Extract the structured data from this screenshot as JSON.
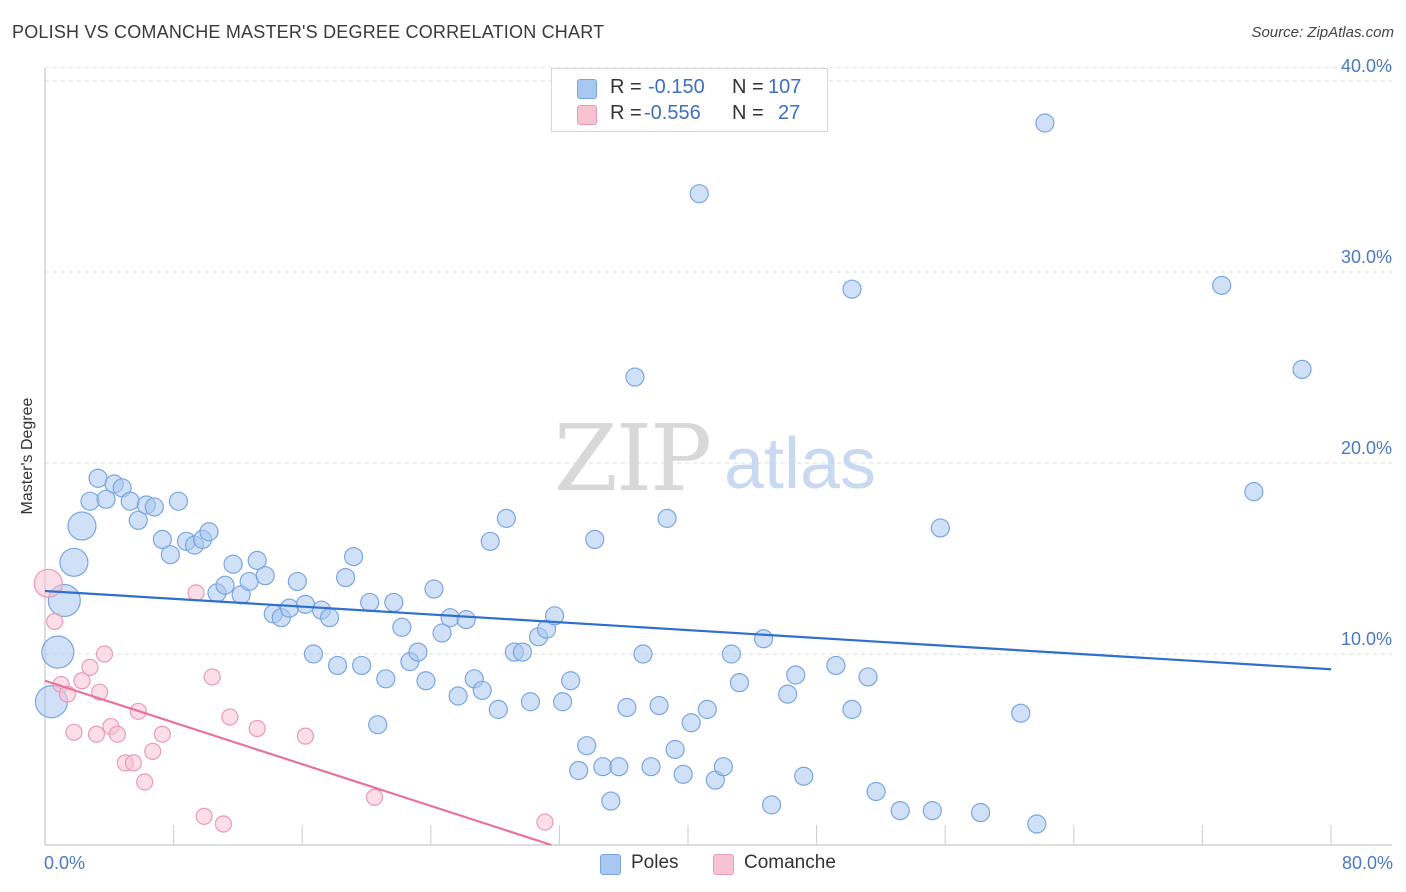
{
  "title": "POLISH VS COMANCHE MASTER'S DEGREE CORRELATION CHART",
  "source": "Source: ZipAtlas.com",
  "watermark": {
    "zip": "ZIP",
    "atlas": "atlas"
  },
  "legend": {
    "rows": [
      {
        "r_label": "R =",
        "r_value": "-0.150",
        "n_label": "N =",
        "n_value": "107",
        "color": "#a9c8f0",
        "border": "#7aa6e0"
      },
      {
        "r_label": "R =",
        "r_value": "-0.556",
        "n_label": "N =",
        "n_value": " 27",
        "color": "#f7c3d3",
        "border": "#ec9ab5"
      }
    ]
  },
  "chart_data": {
    "type": "scatter",
    "title": "POLISH VS COMANCHE MASTER'S DEGREE CORRELATION CHART",
    "xlabel": "",
    "ylabel": "Master's Degree",
    "xlim": [
      0,
      80
    ],
    "ylim": [
      0,
      40
    ],
    "x_tick_labels": [
      "0.0%",
      "80.0%"
    ],
    "y_tick_labels": [
      "40.0%",
      "30.0%",
      "20.0%",
      "10.0%"
    ],
    "y_ticks": [
      40,
      30,
      20,
      10
    ],
    "grid": true,
    "series": [
      {
        "name": "Poles",
        "color": "#a9c8f0",
        "stroke": "#7aa6e0",
        "trend_color": "#2f6fcd",
        "trend": {
          "x": [
            0,
            80
          ],
          "y": [
            13.3,
            9.2
          ]
        },
        "points": [
          [
            0.4,
            7.5,
            3
          ],
          [
            0.8,
            10.1,
            3
          ],
          [
            1.2,
            12.8,
            3
          ],
          [
            1.8,
            14.8,
            3
          ],
          [
            2.3,
            16.7,
            3
          ],
          [
            2.8,
            18.0,
            2
          ],
          [
            3.3,
            19.2,
            2
          ],
          [
            3.8,
            18.1,
            2
          ],
          [
            4.3,
            18.9,
            2
          ],
          [
            4.8,
            18.7,
            2
          ],
          [
            5.3,
            18.0,
            2
          ],
          [
            5.8,
            17.0,
            2
          ],
          [
            6.3,
            17.8,
            2
          ],
          [
            6.8,
            17.7,
            2
          ],
          [
            7.3,
            16.0,
            2
          ],
          [
            7.8,
            15.2,
            2
          ],
          [
            8.3,
            18.0,
            2
          ],
          [
            8.8,
            15.9,
            2
          ],
          [
            9.3,
            15.7,
            2
          ],
          [
            9.8,
            16.0,
            2
          ],
          [
            10.2,
            16.4,
            2
          ],
          [
            10.7,
            13.2,
            2
          ],
          [
            11.2,
            13.6,
            2
          ],
          [
            11.7,
            14.7,
            2
          ],
          [
            12.2,
            13.1,
            2
          ],
          [
            12.7,
            13.8,
            2
          ],
          [
            13.2,
            14.9,
            2
          ],
          [
            13.7,
            14.1,
            2
          ],
          [
            14.2,
            12.1,
            2
          ],
          [
            14.7,
            11.9,
            2
          ],
          [
            15.2,
            12.4,
            2
          ],
          [
            15.7,
            13.8,
            2
          ],
          [
            16.2,
            12.6,
            2
          ],
          [
            16.7,
            10.0,
            2
          ],
          [
            17.2,
            12.3,
            2
          ],
          [
            17.7,
            11.9,
            2
          ],
          [
            18.2,
            9.4,
            2
          ],
          [
            18.7,
            14.0,
            2
          ],
          [
            19.2,
            15.1,
            2
          ],
          [
            19.7,
            9.4,
            2
          ],
          [
            20.2,
            12.7,
            2
          ],
          [
            20.7,
            6.3,
            2
          ],
          [
            21.2,
            8.7,
            2
          ],
          [
            21.7,
            12.7,
            2
          ],
          [
            22.2,
            11.4,
            2
          ],
          [
            22.7,
            9.6,
            2
          ],
          [
            23.2,
            10.1,
            2
          ],
          [
            23.7,
            8.6,
            2
          ],
          [
            24.2,
            13.4,
            2
          ],
          [
            24.7,
            11.1,
            2
          ],
          [
            25.2,
            11.9,
            2
          ],
          [
            25.7,
            7.8,
            2
          ],
          [
            26.2,
            11.8,
            2
          ],
          [
            26.7,
            8.7,
            2
          ],
          [
            27.2,
            8.1,
            2
          ],
          [
            27.7,
            15.9,
            2
          ],
          [
            28.2,
            7.1,
            2
          ],
          [
            28.7,
            17.1,
            2
          ],
          [
            29.2,
            10.1,
            2
          ],
          [
            29.7,
            10.1,
            2
          ],
          [
            30.2,
            7.5,
            2
          ],
          [
            30.7,
            10.9,
            2
          ],
          [
            31.2,
            11.3,
            2
          ],
          [
            31.7,
            12.0,
            2
          ],
          [
            32.2,
            7.5,
            2
          ],
          [
            32.7,
            8.6,
            2
          ],
          [
            33.2,
            3.9,
            2
          ],
          [
            33.7,
            5.2,
            2
          ],
          [
            34.2,
            16.0,
            2
          ],
          [
            34.7,
            4.1,
            2
          ],
          [
            35.2,
            2.3,
            2
          ],
          [
            35.7,
            4.1,
            2
          ],
          [
            36.2,
            7.2,
            2
          ],
          [
            36.7,
            24.5,
            2
          ],
          [
            37.2,
            10.0,
            2
          ],
          [
            37.7,
            4.1,
            2
          ],
          [
            38.2,
            7.3,
            2
          ],
          [
            38.7,
            17.1,
            2
          ],
          [
            39.2,
            5.0,
            2
          ],
          [
            39.7,
            3.7,
            2
          ],
          [
            40.2,
            6.4,
            2
          ],
          [
            40.7,
            34.1,
            2
          ],
          [
            41.2,
            7.1,
            2
          ],
          [
            41.7,
            3.4,
            2
          ],
          [
            42.2,
            4.1,
            2
          ],
          [
            42.7,
            10.0,
            2
          ],
          [
            43.2,
            8.5,
            2
          ],
          [
            44.7,
            10.8,
            2
          ],
          [
            45.2,
            2.1,
            2
          ],
          [
            46.2,
            7.9,
            2
          ],
          [
            46.7,
            8.9,
            2
          ],
          [
            47.2,
            3.6,
            2
          ],
          [
            49.2,
            9.4,
            2
          ],
          [
            50.2,
            7.1,
            2
          ],
          [
            50.2,
            29.1,
            2
          ],
          [
            51.2,
            8.8,
            2
          ],
          [
            51.7,
            2.8,
            2
          ],
          [
            53.2,
            1.8,
            2
          ],
          [
            55.2,
            1.8,
            2
          ],
          [
            55.7,
            16.6,
            2
          ],
          [
            58.2,
            1.7,
            2
          ],
          [
            60.7,
            6.9,
            2
          ],
          [
            61.7,
            1.1,
            2
          ],
          [
            62.2,
            37.8,
            2
          ],
          [
            73.2,
            29.3,
            2
          ],
          [
            75.2,
            18.5,
            2
          ],
          [
            78.2,
            24.9,
            2
          ]
        ]
      },
      {
        "name": "Comanche",
        "color": "#f7c3d3",
        "stroke": "#ec9ab5",
        "trend_color": "#e8739a",
        "trend": {
          "x": [
            0,
            31.5
          ],
          "y": [
            8.6,
            0
          ]
        },
        "points": [
          [
            0.2,
            13.7,
            3
          ],
          [
            0.6,
            11.7,
            1
          ],
          [
            1.0,
            8.4,
            1
          ],
          [
            1.4,
            7.9,
            1
          ],
          [
            1.8,
            5.9,
            1
          ],
          [
            2.3,
            8.6,
            1
          ],
          [
            2.8,
            9.3,
            1
          ],
          [
            3.2,
            5.8,
            1
          ],
          [
            3.4,
            8.0,
            1
          ],
          [
            3.7,
            10.0,
            1
          ],
          [
            4.1,
            6.2,
            1
          ],
          [
            4.5,
            5.8,
            1
          ],
          [
            5.0,
            4.3,
            1
          ],
          [
            5.5,
            4.3,
            1
          ],
          [
            5.8,
            7.0,
            1
          ],
          [
            6.2,
            3.3,
            1
          ],
          [
            6.7,
            4.9,
            1
          ],
          [
            7.3,
            5.8,
            1
          ],
          [
            9.4,
            13.2,
            1
          ],
          [
            9.9,
            1.5,
            1
          ],
          [
            10.4,
            8.8,
            1
          ],
          [
            11.1,
            1.1,
            1
          ],
          [
            11.5,
            6.7,
            1
          ],
          [
            13.2,
            6.1,
            1
          ],
          [
            16.2,
            5.7,
            1
          ],
          [
            20.5,
            2.5,
            1
          ],
          [
            31.1,
            1.2,
            1
          ]
        ]
      }
    ]
  }
}
